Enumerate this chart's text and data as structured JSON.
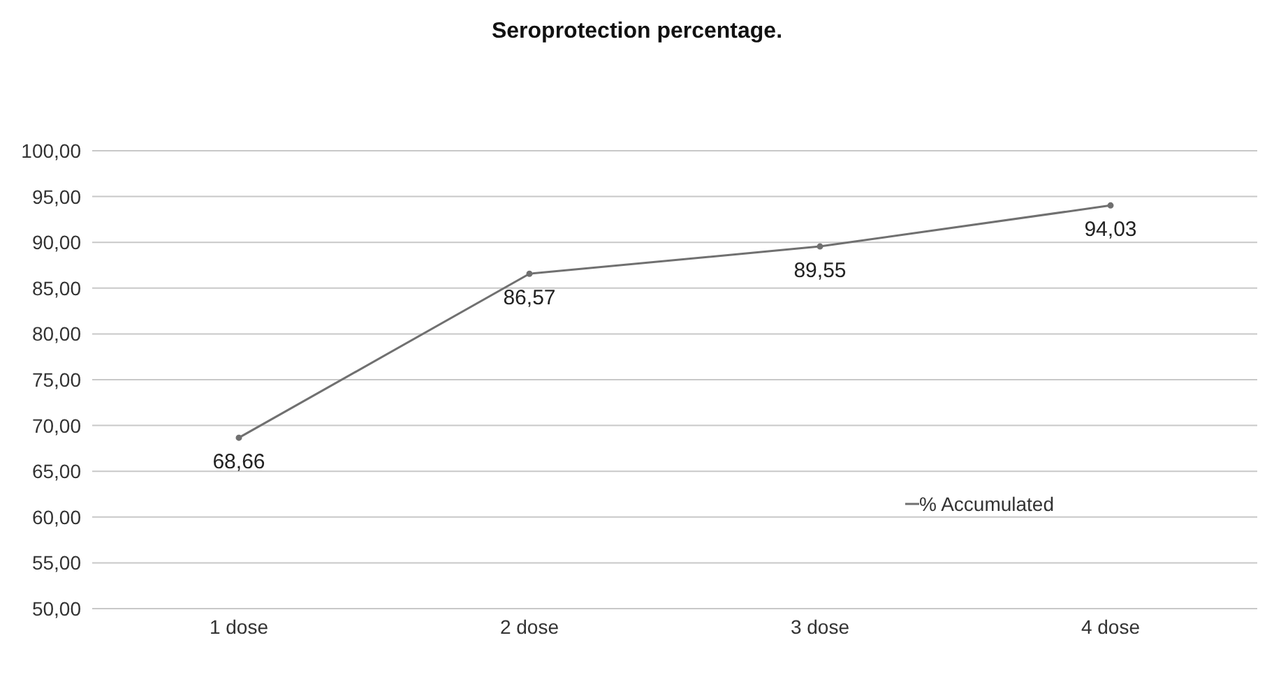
{
  "chart_data": {
    "type": "line",
    "title": "Seroprotection percentage.",
    "categories": [
      "1 dose",
      "2 dose",
      "3 dose",
      "4 dose"
    ],
    "series": [
      {
        "name": "% Accumulated",
        "color": "#707070",
        "values": [
          68.66,
          86.57,
          89.55,
          94.03
        ],
        "value_labels": [
          "68,66",
          "86,57",
          "89,55",
          "94,03"
        ]
      }
    ],
    "ylim": [
      50,
      100
    ],
    "yticks": [
      {
        "value": 50,
        "label": "50,00"
      },
      {
        "value": 55,
        "label": "55,00"
      },
      {
        "value": 60,
        "label": "60,00"
      },
      {
        "value": 65,
        "label": "65,00"
      },
      {
        "value": 70,
        "label": "70,00"
      },
      {
        "value": 75,
        "label": "75,00"
      },
      {
        "value": 80,
        "label": "80,00"
      },
      {
        "value": 85,
        "label": "85,00"
      },
      {
        "value": 90,
        "label": "90,00"
      },
      {
        "value": 95,
        "label": "95,00"
      },
      {
        "value": 100,
        "label": "100,00"
      }
    ],
    "grid": "y",
    "legend": "right",
    "marker": "circle",
    "line_style": "solid"
  }
}
